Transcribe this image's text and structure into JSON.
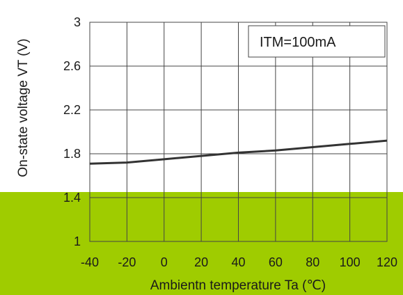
{
  "chart_data": {
    "type": "line",
    "title": "",
    "xlabel": "Ambientn temperature Ta (℃)",
    "ylabel": "On-state voltage VT (V)",
    "xlim": [
      -40,
      120
    ],
    "ylim": [
      1,
      3
    ],
    "x_ticks": [
      -40,
      -20,
      0,
      20,
      40,
      60,
      80,
      100,
      120
    ],
    "y_ticks": [
      {
        "value": 1,
        "label": "1"
      },
      {
        "value": 1.4,
        "label": "1.4"
      },
      {
        "value": 1.8,
        "label": "1.8"
      },
      {
        "value": 2.2,
        "label": "2.2"
      },
      {
        "value": 2.6,
        "label": "2.6"
      },
      {
        "value": 3,
        "label": "3"
      }
    ],
    "grid": true,
    "legend_box": {
      "text": "ITM=100mA",
      "placement": "top-right"
    },
    "series": [
      {
        "x": [
          -40,
          -20,
          0,
          20,
          40,
          60,
          80,
          100,
          120
        ],
        "values": [
          1.71,
          1.72,
          1.75,
          1.78,
          1.81,
          1.83,
          1.86,
          1.89,
          1.92
        ]
      }
    ],
    "colors": {
      "highlight_band": "#9fcc00",
      "line": "#333333",
      "grid": "#444444"
    }
  }
}
